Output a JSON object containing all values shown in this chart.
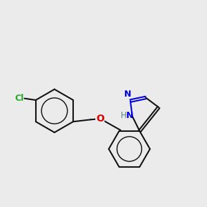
{
  "bg_color": "#ebebeb",
  "bond_color": "#111111",
  "N_color": "#0000dd",
  "O_color": "#dd0000",
  "Cl_color": "#22aa22",
  "H_color": "#5a8080",
  "bond_lw": 1.5,
  "fig_w": 3.0,
  "fig_h": 3.0,
  "dpi": 100,
  "xlim": [
    -2.4,
    1.8
  ],
  "ylim": [
    -1.5,
    1.5
  ]
}
